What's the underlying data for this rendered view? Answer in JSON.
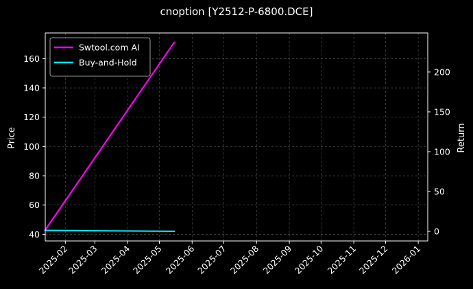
{
  "chart_data": {
    "type": "line",
    "title": "cnoption [Y2512-P-6800.DCE]",
    "ylabel_left": "Price",
    "ylabel_right": "Return",
    "x_dates": [
      "2025-01-13",
      "2025-05-15"
    ],
    "xlim": [
      "2025-01-13",
      "2026-01-10"
    ],
    "x_ticks": [
      "2025-02",
      "2025-03",
      "2025-04",
      "2025-05",
      "2025-06",
      "2025-07",
      "2025-08",
      "2025-09",
      "2025-10",
      "2025-11",
      "2025-12",
      "2026-01"
    ],
    "y_left": {
      "ylim": [
        35.5,
        177.5
      ],
      "ticks": [
        40,
        60,
        80,
        100,
        120,
        140,
        160
      ]
    },
    "y_right": {
      "ylim": [
        -12,
        249
      ],
      "ticks": [
        0,
        50,
        100,
        150,
        200
      ]
    },
    "series": [
      {
        "name": "Swtool.com AI",
        "axis": "left",
        "color": "#ff00ff",
        "points": [
          [
            "2025-01-13",
            43.0
          ],
          [
            "2025-05-15",
            171.0
          ]
        ]
      },
      {
        "name": "Buy-and-Hold",
        "axis": "left",
        "color": "#00e5ee",
        "points": [
          [
            "2025-01-13",
            42.7
          ],
          [
            "2025-05-15",
            42.1
          ]
        ]
      }
    ],
    "grid": true,
    "legend": "top-left",
    "background": "#000000",
    "text_color": "#ffffff"
  }
}
